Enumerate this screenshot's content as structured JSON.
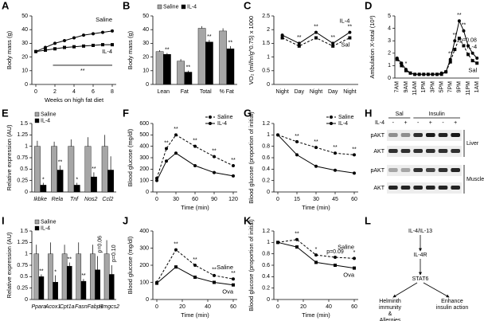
{
  "chart_data": [
    {
      "type": "line",
      "panel": "A",
      "ylabel": "Body mass (g)",
      "xlabel": "Weeks on high fat diet",
      "x": [
        0,
        1,
        2,
        3,
        4,
        5,
        6,
        7,
        8
      ],
      "xlim": [
        0,
        8
      ],
      "xticks": [
        0,
        2,
        4,
        6,
        8
      ],
      "ylim": [
        0,
        50
      ],
      "yticks": [
        0,
        10,
        20,
        30,
        40,
        50
      ],
      "legend": "end",
      "annotation": "**",
      "series": [
        {
          "name": "Saline",
          "color": "#000000",
          "dash": false,
          "marker": "circle",
          "values": [
            24,
            27,
            30,
            32,
            34,
            36,
            37,
            38,
            39
          ]
        },
        {
          "name": "IL-4",
          "color": "#000000",
          "dash": false,
          "marker": "square",
          "values": [
            24,
            25,
            26,
            27,
            27.5,
            28,
            28.5,
            29,
            29
          ]
        }
      ]
    },
    {
      "type": "bar",
      "panel": "B",
      "ylabel": "Body mass (g)",
      "categories": [
        "Lean",
        "Fat",
        "Total",
        "% Fat"
      ],
      "ylim": [
        0,
        50
      ],
      "yticks": [
        0,
        10,
        20,
        30,
        40,
        50
      ],
      "legend": "top",
      "series": [
        {
          "name": "Saline",
          "color": "#a6a6a6",
          "values": [
            24,
            17,
            41,
            39
          ],
          "errors": [
            1,
            1.5,
            1.5,
            2
          ]
        },
        {
          "name": "IL-4",
          "color": "#000000",
          "values": [
            22,
            9,
            31,
            26
          ],
          "errors": [
            1,
            1,
            1.5,
            2
          ],
          "sig": [
            "**",
            "**",
            "**",
            "**"
          ]
        }
      ]
    },
    {
      "type": "line",
      "panel": "C",
      "ylabel": "VO₂ (ml/hr/g^0.75) x 1000",
      "categories": [
        "Night",
        "Day",
        "Night",
        "Day",
        "Night"
      ],
      "ylim": [
        0,
        2.5
      ],
      "yticks": [
        0,
        0.5,
        1,
        1.5,
        2,
        2.5
      ],
      "legend": "end",
      "series": [
        {
          "name": "IL-4",
          "color": "#000000",
          "dash": false,
          "marker": "circle",
          "values": [
            1.8,
            1.5,
            1.9,
            1.5,
            1.9
          ],
          "sig": [
            null,
            "**",
            "**",
            "**",
            "**"
          ]
        },
        {
          "name": "Sal",
          "color": "#000000",
          "dash": true,
          "marker": "square",
          "values": [
            1.7,
            1.4,
            1.7,
            1.4,
            1.7
          ]
        }
      ]
    },
    {
      "type": "line",
      "panel": "D",
      "ylabel": "Ambulation X-total (10³)",
      "categories": [
        "7AM",
        null,
        "9AM",
        null,
        "11AM",
        null,
        "1PM",
        null,
        "3PM",
        null,
        "5PM",
        null,
        "7PM",
        null,
        "9PM",
        null,
        "11PM",
        null,
        "1AM"
      ],
      "ylim": [
        0,
        5
      ],
      "yticks": [
        0,
        1,
        2,
        3,
        4,
        5
      ],
      "legend": "end",
      "series": [
        {
          "name": "IL-4",
          "color": "#000000",
          "dash": false,
          "marker": "circle",
          "values": [
            1.6,
            1.2,
            0.7,
            0.4,
            0.3,
            0.3,
            0.3,
            0.3,
            0.3,
            0.3,
            0.4,
            0.5,
            1.5,
            3.0,
            4.6,
            3.8,
            2.6,
            2.0,
            1.6
          ],
          "sig": [
            null,
            null,
            "*",
            null,
            null,
            null,
            null,
            null,
            null,
            null,
            null,
            null,
            "**",
            "**",
            "**",
            "**",
            "p=0.08",
            null,
            null
          ]
        },
        {
          "name": "Sal",
          "color": "#000000",
          "dash": true,
          "marker": "square",
          "values": [
            1.5,
            1.0,
            0.6,
            0.4,
            0.3,
            0.3,
            0.3,
            0.3,
            0.3,
            0.3,
            0.3,
            0.5,
            1.3,
            2.3,
            3.2,
            2.6,
            1.9,
            1.4,
            1.2
          ]
        }
      ]
    },
    {
      "type": "bar",
      "panel": "E",
      "ylabel": "Relative expression (AU)",
      "categories": [
        "Ikbke",
        "Rela",
        "Tnf",
        "Nos2",
        "Ccl2"
      ],
      "categories_italic": true,
      "ylim": [
        0,
        1.5
      ],
      "yticks": [
        0,
        0.25,
        0.5,
        0.75,
        1,
        1.25,
        1.5
      ],
      "legend": "top-left",
      "series": [
        {
          "name": "Saline",
          "color": "#a6a6a6",
          "values": [
            1,
            1,
            1,
            1,
            1
          ],
          "errors": [
            0.12,
            0.1,
            0.15,
            0.2,
            0.25
          ]
        },
        {
          "name": "IL-4",
          "color": "#000000",
          "values": [
            0.15,
            0.48,
            0.15,
            0.33,
            0.48
          ],
          "errors": [
            0.05,
            0.1,
            0.05,
            0.1,
            0.3
          ],
          "sig": [
            "*",
            "**",
            "*",
            "**",
            null
          ]
        }
      ]
    },
    {
      "type": "line",
      "panel": "F",
      "ylabel": "Blood glucose (mg/dl)",
      "xlabel": "Time (min)",
      "x": [
        0,
        15,
        30,
        60,
        90,
        120
      ],
      "xlim": [
        0,
        120
      ],
      "xticks": [
        0,
        30,
        60,
        90,
        120
      ],
      "ylim": [
        0,
        600
      ],
      "yticks": [
        0,
        100,
        200,
        300,
        400,
        500,
        600
      ],
      "legend": "top-right",
      "series": [
        {
          "name": "Saline",
          "color": "#000000",
          "dash": true,
          "marker": "circle",
          "values": [
            120,
            380,
            500,
            400,
            310,
            230
          ],
          "sig": [
            null,
            "**",
            "**",
            "**",
            "**",
            "**"
          ]
        },
        {
          "name": "IL-4",
          "color": "#000000",
          "dash": false,
          "marker": "circle",
          "values": [
            100,
            270,
            340,
            230,
            170,
            140
          ]
        }
      ]
    },
    {
      "type": "line",
      "panel": "G",
      "ylabel": "Blood glucose (proportion of initial)",
      "xlabel": "Time (min)",
      "x": [
        0,
        15,
        30,
        45,
        60
      ],
      "xlim": [
        0,
        60
      ],
      "xticks": [
        0,
        15,
        30,
        45,
        60
      ],
      "ylim": [
        0,
        1.2
      ],
      "yticks": [
        0,
        0.2,
        0.4,
        0.6,
        0.8,
        1,
        1.2
      ],
      "legend": "top-right",
      "series": [
        {
          "name": "Saline",
          "color": "#000000",
          "dash": true,
          "marker": "circle",
          "values": [
            1,
            0.88,
            0.78,
            0.68,
            0.65
          ],
          "sig": [
            null,
            "**",
            "**",
            "**",
            "**"
          ]
        },
        {
          "name": "IL-4",
          "color": "#000000",
          "dash": false,
          "marker": "circle",
          "values": [
            1,
            0.65,
            0.45,
            0.38,
            0.33
          ]
        }
      ]
    },
    {
      "type": "bar",
      "panel": "I",
      "ylabel": "Relative expression (AU)",
      "categories": [
        "Ppara",
        "Acox1",
        "Cpt1a",
        "Fasn",
        "Fabp1",
        "Hmgcs2"
      ],
      "categories_italic": true,
      "ylim": [
        0,
        1.5
      ],
      "yticks": [
        0,
        0.25,
        0.5,
        0.75,
        1,
        1.25,
        1.5
      ],
      "legend": "top-left",
      "series": [
        {
          "name": "Saline",
          "color": "#a6a6a6",
          "values": [
            1,
            1,
            1,
            1,
            1,
            1
          ],
          "errors": [
            0.2,
            0.25,
            0.2,
            0.25,
            0.2,
            0.3
          ]
        },
        {
          "name": "IL-4",
          "color": "#000000",
          "values": [
            0.5,
            0.38,
            0.73,
            0.4,
            0.65,
            0.55
          ],
          "errors": [
            0.05,
            0.15,
            0.08,
            0.05,
            0.3,
            0.2
          ],
          "sig": [
            "**",
            "*",
            "**",
            "**",
            "p=0.06",
            "p=0.10"
          ]
        }
      ]
    },
    {
      "type": "line",
      "panel": "J",
      "ylabel": "Blood glucose (mg/dl)",
      "xlabel": "Time (min)",
      "x": [
        0,
        15,
        30,
        45,
        60
      ],
      "xlim": [
        0,
        60
      ],
      "xticks": [
        0,
        20,
        40,
        60
      ],
      "ylim": [
        0,
        400
      ],
      "yticks": [
        0,
        100,
        200,
        300,
        400
      ],
      "legend": "end",
      "series": [
        {
          "name": "Saline",
          "color": "#000000",
          "dash": true,
          "marker": "circle",
          "values": [
            100,
            290,
            200,
            140,
            120
          ],
          "sig": [
            null,
            "**",
            "**",
            "**",
            "**"
          ]
        },
        {
          "name": "Ova",
          "color": "#000000",
          "dash": false,
          "marker": "square",
          "values": [
            95,
            190,
            130,
            100,
            85
          ]
        }
      ]
    },
    {
      "type": "line",
      "panel": "K",
      "ylabel": "Blood glucose (proportion of initial)",
      "xlabel": "Time (min)",
      "x": [
        0,
        15,
        30,
        45,
        60
      ],
      "xlim": [
        0,
        60
      ],
      "xticks": [
        0,
        20,
        40,
        60
      ],
      "ylim": [
        0,
        1.2
      ],
      "yticks": [
        0,
        0.2,
        0.4,
        0.6,
        0.8,
        1,
        1.2
      ],
      "legend": "end",
      "series": [
        {
          "name": "Saline",
          "color": "#000000",
          "dash": true,
          "marker": "circle",
          "values": [
            1,
            1.05,
            0.78,
            0.74,
            0.72
          ],
          "sig": [
            null,
            "**",
            "*",
            "p=0.09",
            "*"
          ]
        },
        {
          "name": "Ova",
          "color": "#000000",
          "dash": false,
          "marker": "square",
          "values": [
            1,
            0.92,
            0.65,
            0.6,
            0.55
          ]
        }
      ]
    }
  ],
  "blot": {
    "panel": "H",
    "groups": [
      "Sal",
      "Insulin"
    ],
    "treatment_label": "IL-4",
    "lanes": [
      "-",
      "+",
      "-",
      "+",
      "-",
      "+"
    ],
    "rows": [
      "pAKT",
      "AKT",
      "pAKT",
      "AKT"
    ],
    "tissues": [
      "Liver",
      "Muscle"
    ]
  },
  "diagram": {
    "panel": "L",
    "nodes": [
      {
        "lines": [
          "IL-4/IL-13"
        ]
      },
      {
        "lines": [
          "IL-4R"
        ]
      },
      {
        "lines": [
          "STAT6"
        ]
      },
      {
        "lines": [
          "Helminth",
          "immunity",
          "&",
          "Allergies"
        ]
      },
      {
        "lines": [
          "Enhance",
          "insulin action"
        ]
      }
    ]
  }
}
